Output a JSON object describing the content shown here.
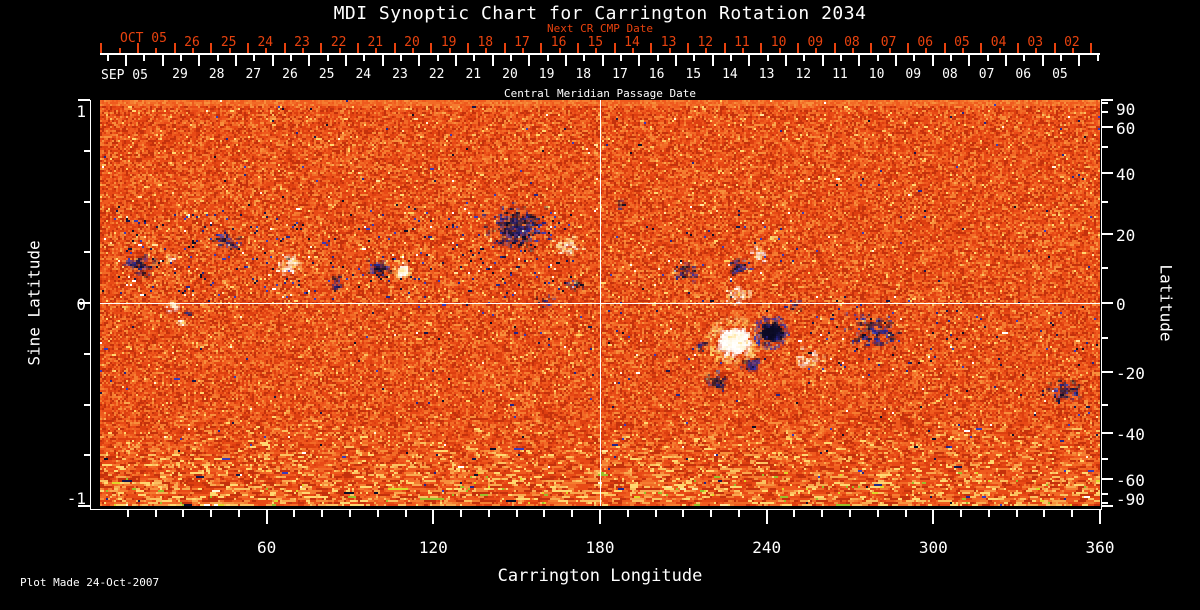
{
  "title": "MDI Synoptic Chart for Carrington Rotation 2034",
  "plot_made": "Plot Made 24-Oct-2007",
  "colors": {
    "background": "#000000",
    "axis": "#ffffff",
    "red_axis": "#e8420e",
    "map_base": [
      "#c4310c",
      "#dd3f10",
      "#e84a16",
      "#ef5a1e",
      "#f26a26",
      "#f57c30",
      "#f78f3c"
    ],
    "map_light": [
      "#f9a84e",
      "#fbc160",
      "#ffd870"
    ],
    "map_green": "#9abf2a",
    "map_yellow": "#ddd82a",
    "negative": [
      "#0c0c26",
      "#16164a",
      "#24248a",
      "#3a3ab8"
    ],
    "positive": [
      "#ffffff",
      "#fff6d8",
      "#ffe49a",
      "#ffd060"
    ]
  },
  "chart_data": {
    "type": "heatmap",
    "title": "MDI Synoptic Chart for Carrington Rotation 2034",
    "xlabel": "Carrington Longitude",
    "ylabel_left": "Sine Latitude",
    "ylabel_right": "Latitude",
    "xlim": [
      0,
      360
    ],
    "ylim_sine": [
      -1,
      1
    ],
    "x_major_ticks": [
      "60",
      "120",
      "180",
      "240",
      "300",
      "360"
    ],
    "x_major_values": [
      60,
      120,
      180,
      240,
      300,
      360
    ],
    "x_minor_step_deg": 10,
    "left_axis": {
      "major": [
        {
          "label": "1",
          "sin": 1
        },
        {
          "label": "0",
          "sin": 0
        },
        {
          "label": "-1",
          "sin": -1
        }
      ],
      "minor_sins": [
        0.75,
        0.5,
        0.25,
        -0.25,
        -0.5,
        -0.75
      ]
    },
    "right_axis": {
      "major_lats": [
        90,
        60,
        40,
        20,
        0,
        -20,
        -40,
        -60,
        -90
      ],
      "minor_lats": [
        80,
        70,
        50,
        30,
        10,
        -10,
        -30,
        -50,
        -70,
        -80
      ]
    },
    "top_axis": {
      "next_label": "Next CR CMP Date",
      "next_month": "OCT 05",
      "next_days": [
        "26",
        "25",
        "24",
        "23",
        "22",
        "21",
        "20",
        "19",
        "18",
        "17",
        "16",
        "15",
        "14",
        "13",
        "12",
        "11",
        "10",
        "09",
        "08",
        "07",
        "06",
        "05",
        "04",
        "03",
        "02"
      ],
      "cmp_month": "SEP 05",
      "cmp_days": [
        "29",
        "28",
        "27",
        "26",
        "25",
        "24",
        "23",
        "22",
        "21",
        "20",
        "19",
        "18",
        "17",
        "16",
        "15",
        "14",
        "13",
        "12",
        "11",
        "10",
        "09",
        "08",
        "07",
        "06",
        "05"
      ],
      "cmp_label": "Central Meridian Passage Date",
      "days_per_rotation": 27.2753
    },
    "grid_lines": {
      "equator_sinlat": 0,
      "meridian_lon": 180
    },
    "active_regions": [
      {
        "t": "pos",
        "lon": 25.9,
        "s": -0.01,
        "r": 7,
        "st": 1
      },
      {
        "t": "pos",
        "lon": 28.8,
        "s": -0.094,
        "r": 6,
        "st": 0.9
      },
      {
        "t": "neg",
        "lon": 31.7,
        "s": -0.044,
        "r": 5,
        "st": 0.6
      },
      {
        "t": "pos",
        "lon": 25.2,
        "s": 0.222,
        "r": 6,
        "st": 0.8
      },
      {
        "t": "neg",
        "lon": 14.4,
        "s": 0.187,
        "r": 16,
        "st": 0.7
      },
      {
        "t": "neg",
        "lon": 45.0,
        "s": 0.31,
        "r": 13,
        "st": 0.7
      },
      {
        "t": "pos",
        "lon": 67.3,
        "s": 0.197,
        "r": 14,
        "st": 1
      },
      {
        "t": "neg",
        "lon": 84.6,
        "s": 0.103,
        "r": 10,
        "st": 0.6
      },
      {
        "t": "neg",
        "lon": 100.1,
        "s": 0.172,
        "r": 11,
        "st": 1.1
      },
      {
        "t": "pos",
        "lon": 108.7,
        "s": 0.163,
        "r": 7,
        "st": 1,
        "solid": true
      },
      {
        "t": "neg",
        "lon": 149.4,
        "s": 0.369,
        "r": 28,
        "st": 1.1
      },
      {
        "t": "pos",
        "lon": 167.4,
        "s": 0.286,
        "r": 14,
        "st": 0.9
      },
      {
        "t": "neg",
        "lon": 171.0,
        "s": 0.089,
        "r": 9,
        "st": 0.6
      },
      {
        "t": "neg",
        "lon": 160.2,
        "s": 0.015,
        "r": 8,
        "st": 0.5
      },
      {
        "t": "neg",
        "lon": 187.2,
        "s": 0.483,
        "r": 8,
        "st": 0.35
      },
      {
        "t": "neg",
        "lon": 210.6,
        "s": 0.153,
        "r": 12,
        "st": 0.7
      },
      {
        "t": "pos",
        "lon": 236.9,
        "s": 0.246,
        "r": 10,
        "st": 0.7
      },
      {
        "t": "neg",
        "lon": 229.3,
        "s": 0.187,
        "r": 11,
        "st": 1
      },
      {
        "t": "pos",
        "lon": 229.3,
        "s": 0.039,
        "r": 13,
        "st": 0.9
      },
      {
        "t": "pos",
        "lon": 227.9,
        "s": -0.182,
        "r": 20,
        "st": 1,
        "solid": true
      },
      {
        "t": "neg",
        "lon": 241.2,
        "s": -0.138,
        "r": 14,
        "st": 1,
        "solid": true
      },
      {
        "t": "neg",
        "lon": 234.4,
        "s": -0.296,
        "r": 10,
        "st": 1.2
      },
      {
        "t": "neg",
        "lon": 221.8,
        "s": -0.389,
        "r": 13,
        "st": 0.8
      },
      {
        "t": "neg",
        "lon": 216.0,
        "s": -0.207,
        "r": 7,
        "st": 0.8
      },
      {
        "t": "pos",
        "lon": 254.9,
        "s": -0.281,
        "r": 15,
        "st": 0.6
      },
      {
        "t": "neg",
        "lon": 250.2,
        "s": -0.01,
        "r": 8,
        "st": 0.5
      },
      {
        "t": "neg",
        "lon": 277.2,
        "s": -0.133,
        "r": 26,
        "st": 0.55
      },
      {
        "t": "neg",
        "lon": 346.7,
        "s": -0.429,
        "r": 18,
        "st": 0.6
      }
    ],
    "activity_bands": [
      {
        "lon": [
          3,
          172
        ],
        "sin": [
          0.03,
          0.46
        ],
        "neg": 0.028,
        "pos": 0.009
      },
      {
        "lon": [
          185,
          252
        ],
        "sin": [
          0.0,
          0.38
        ],
        "neg": 0.011,
        "pos": 0.005
      },
      {
        "lon": [
          246,
          312
        ],
        "sin": [
          -0.33,
          0.04
        ],
        "neg": 0.02,
        "pos": 0.005
      },
      {
        "lon": [
          330,
          360
        ],
        "sin": [
          -0.58,
          -0.1
        ],
        "neg": 0.016,
        "pos": 0.004
      },
      {
        "lon": [
          95,
          200
        ],
        "sin": [
          -0.25,
          0
        ],
        "neg": 0.007,
        "pos": 0.004
      }
    ]
  }
}
